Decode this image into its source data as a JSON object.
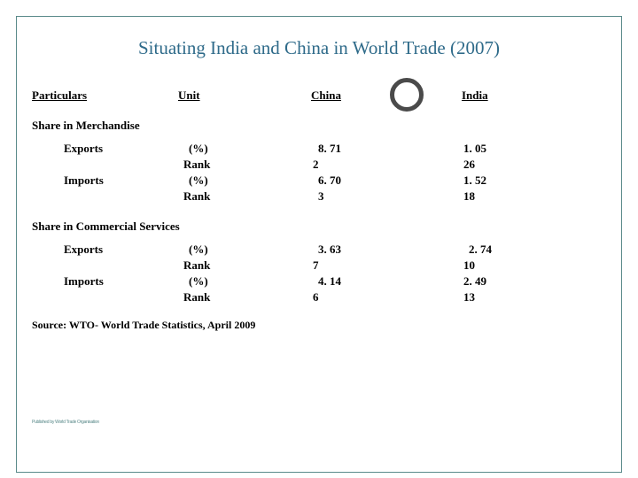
{
  "title": "Situating India and China in World Trade (2007)",
  "headers": {
    "particulars": "Particulars",
    "unit": "Unit",
    "china": "China",
    "india": "India"
  },
  "sections": {
    "merchandise": {
      "label": "Share in Merchandise",
      "rows": [
        {
          "particular": "Exports",
          "unit": "(%)",
          "china": "8. 71",
          "india": "1. 05"
        },
        {
          "particular": "",
          "unit": "Rank",
          "china": "2",
          "india": "26"
        },
        {
          "particular": "Imports",
          "unit": "(%)",
          "china": "6. 70",
          "india": "1. 52"
        },
        {
          "particular": "",
          "unit": "Rank",
          "china": "3",
          "india": "18"
        }
      ]
    },
    "services": {
      "label": "Share in Commercial Services",
      "rows": [
        {
          "particular": "Exports",
          "unit": "(%)",
          "china": "3. 63",
          "india": "2. 74"
        },
        {
          "particular": "",
          "unit": "Rank",
          "china": "7",
          "india": "10"
        },
        {
          "particular": "Imports",
          "unit": "(%)",
          "china": "4. 14",
          "india": "2. 49"
        },
        {
          "particular": "",
          "unit": "Rank",
          "china": "6",
          "india": "13"
        }
      ]
    }
  },
  "source": "Source:  WTO- World Trade Statistics, April 2009",
  "footer": "Published by World Trade Organisation",
  "colors": {
    "title_color": "#2f6b8a",
    "border_color": "#5a8a8a",
    "text_color": "#000000",
    "circle_border": "#4a4a4a",
    "background": "#ffffff"
  }
}
